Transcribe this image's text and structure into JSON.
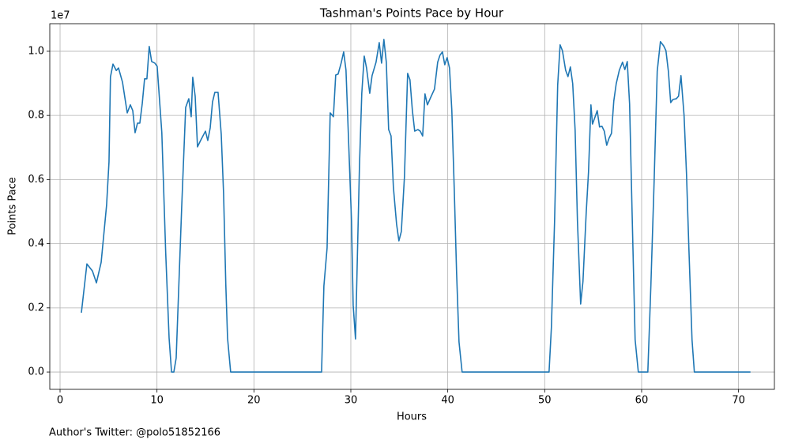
{
  "chart_data": {
    "type": "line",
    "title": "Tashman's Points Pace by Hour",
    "x_label": "Hours",
    "y_label": "Points Pace",
    "y_offset_label": "1e7",
    "footer": "Author's Twitter: @polo51852166",
    "color": "#1f77b4",
    "grid": true,
    "xlim": [
      -1.06,
      73.7
    ],
    "ylim": [
      -0.054,
      1.086
    ],
    "xticks": [
      0,
      10,
      20,
      30,
      40,
      50,
      60,
      70
    ],
    "yticks": [
      {
        "value": 0,
        "label": "0.0"
      },
      0.2,
      0.4,
      0.6,
      0.8,
      {
        "value": 1,
        "label": "1.0"
      }
    ],
    "x": [
      2.2,
      2.77,
      3.34,
      3.75,
      4.24,
      4.8,
      5.05,
      5.2,
      5.46,
      5.8,
      6.03,
      6.44,
      6.93,
      7.25,
      7.5,
      7.74,
      7.99,
      8.23,
      8.48,
      8.72,
      8.96,
      9.2,
      9.45,
      9.78,
      10.02,
      10.5,
      10.9,
      11.25,
      11.5,
      11.74,
      11.98,
      12.55,
      12.96,
      13.28,
      13.53,
      13.69,
      13.94,
      14.18,
      14.5,
      15.0,
      15.24,
      15.49,
      15.73,
      15.97,
      16.3,
      16.63,
      16.87,
      17.1,
      17.28,
      17.6,
      26.98,
      27.22,
      27.55,
      27.87,
      28.2,
      28.44,
      28.69,
      29.0,
      29.26,
      29.5,
      29.75,
      30.07,
      30.24,
      30.48,
      30.89,
      31.13,
      31.38,
      31.62,
      31.95,
      32.19,
      32.6,
      32.93,
      33.17,
      33.41,
      33.66,
      33.9,
      34.15,
      34.39,
      34.72,
      34.96,
      35.21,
      35.53,
      35.86,
      36.1,
      36.35,
      36.59,
      36.92,
      37.16,
      37.41,
      37.65,
      37.9,
      38.22,
      38.63,
      38.96,
      39.2,
      39.45,
      39.69,
      39.93,
      40.18,
      40.42,
      40.67,
      40.91,
      41.16,
      41.48,
      50.45,
      50.69,
      51.02,
      51.34,
      51.59,
      51.83,
      52.16,
      52.4,
      52.65,
      52.89,
      53.14,
      53.38,
      53.71,
      53.95,
      54.28,
      54.52,
      54.77,
      54.93,
      55.17,
      55.42,
      55.66,
      55.91,
      56.15,
      56.4,
      56.64,
      56.89,
      57.13,
      57.38,
      57.7,
      58.03,
      58.27,
      58.52,
      58.76,
      59.0,
      59.33,
      59.66,
      60.64,
      60.96,
      61.29,
      61.61,
      61.94,
      62.27,
      62.51,
      62.76,
      63.0,
      63.24,
      63.57,
      63.81,
      64.06,
      64.38,
      64.63,
      64.87,
      65.2,
      65.44,
      71.23
    ],
    "values": [
      0.185,
      0.337,
      0.315,
      0.278,
      0.342,
      0.52,
      0.655,
      0.92,
      0.96,
      0.94,
      0.948,
      0.904,
      0.808,
      0.833,
      0.815,
      0.746,
      0.776,
      0.776,
      0.837,
      0.914,
      0.914,
      1.015,
      0.968,
      0.963,
      0.953,
      0.746,
      0.372,
      0.106,
      0,
      0,
      0.044,
      0.515,
      0.825,
      0.852,
      0.796,
      0.919,
      0.86,
      0.702,
      0.722,
      0.751,
      0.722,
      0.761,
      0.842,
      0.872,
      0.872,
      0.741,
      0.557,
      0.273,
      0.106,
      0,
      0,
      0.268,
      0.387,
      0.808,
      0.796,
      0.926,
      0.929,
      0.963,
      0.998,
      0.941,
      0.736,
      0.47,
      0.209,
      0.103,
      0.643,
      0.869,
      0.985,
      0.948,
      0.869,
      0.924,
      0.966,
      1.027,
      0.963,
      1.037,
      0.966,
      0.756,
      0.736,
      0.576,
      0.461,
      0.409,
      0.438,
      0.608,
      0.931,
      0.911,
      0.815,
      0.751,
      0.756,
      0.751,
      0.736,
      0.867,
      0.833,
      0.855,
      0.882,
      0.966,
      0.988,
      0.998,
      0.958,
      0.98,
      0.948,
      0.815,
      0.569,
      0.31,
      0.094,
      0,
      0,
      0.138,
      0.47,
      0.894,
      1.02,
      1.002,
      0.941,
      0.921,
      0.951,
      0.899,
      0.754,
      0.47,
      0.212,
      0.283,
      0.495,
      0.623,
      0.833,
      0.773,
      0.793,
      0.815,
      0.764,
      0.766,
      0.751,
      0.707,
      0.729,
      0.744,
      0.845,
      0.899,
      0.941,
      0.966,
      0.943,
      0.968,
      0.835,
      0.52,
      0.101,
      0,
      0,
      0.273,
      0.594,
      0.938,
      1.03,
      1.017,
      1.002,
      0.938,
      0.84,
      0.85,
      0.852,
      0.86,
      0.924,
      0.8,
      0.618,
      0.392,
      0.101,
      0,
      0
    ]
  }
}
